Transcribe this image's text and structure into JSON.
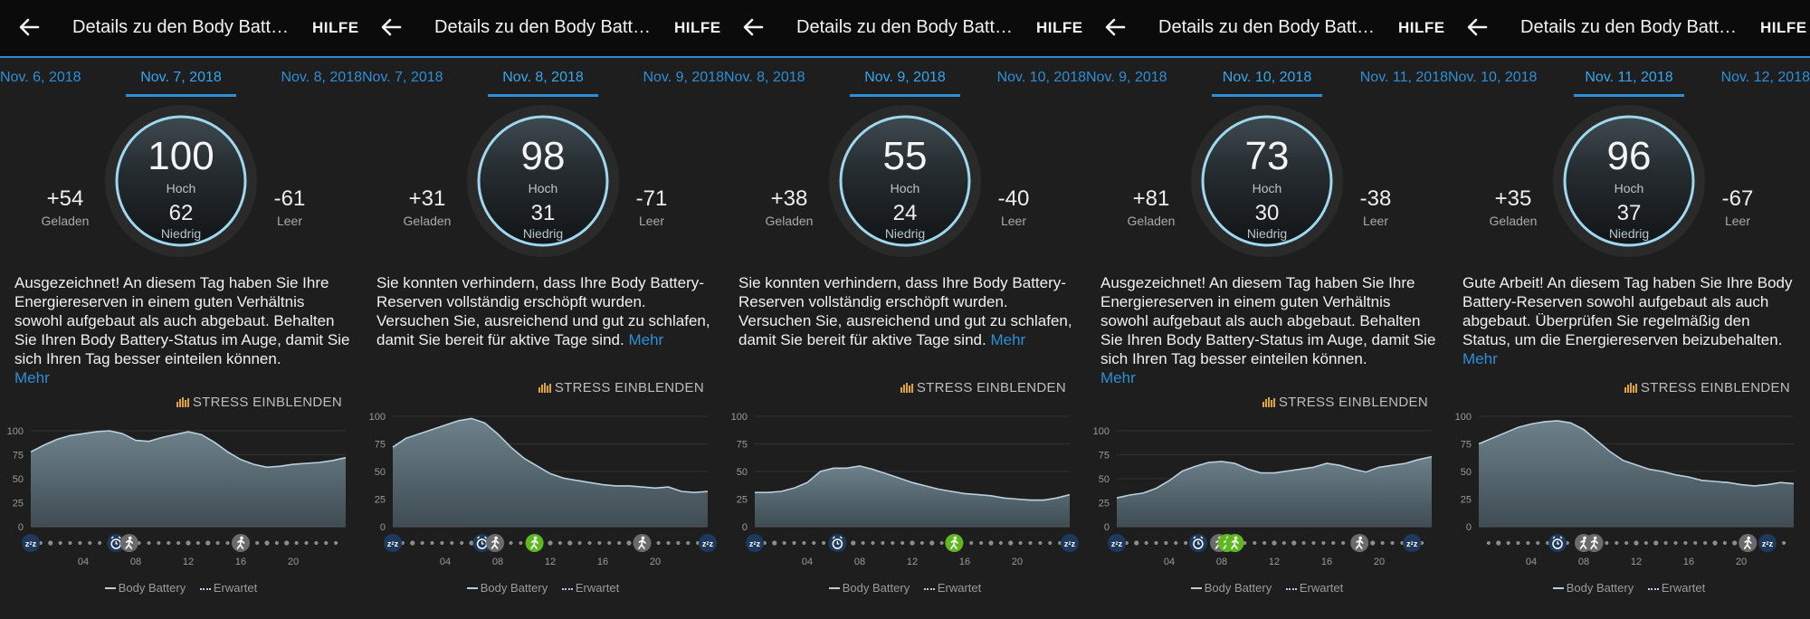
{
  "header": {
    "title": "Details zu den Body Battery-Daten",
    "help_label": "HILFE"
  },
  "labels": {
    "hoch": "Hoch",
    "niedrig": "Niedrig",
    "geladen": "Geladen",
    "leer": "Leer",
    "more": "Mehr",
    "stress": "STRESS EINBLENDEN",
    "legend_body_battery": "Body Battery",
    "legend_expected": "Erwartet",
    "y_ticks": [
      "100",
      "75",
      "50",
      "25",
      "0"
    ],
    "x_ticks": [
      "04",
      "08",
      "12",
      "16",
      "20"
    ]
  },
  "colors": {
    "accent": "#2e8fd6",
    "background": "#1e1e1e",
    "ring": "#9ed8ee",
    "area": "#5a6e78",
    "line": "#b8d0dc",
    "activity": "#5fb822",
    "stress": "#e0a62b"
  },
  "panels": [
    {
      "date_prev": "Nov. 6, 2018",
      "date_current": "Nov. 7, 2018",
      "date_next": "Nov. 8, 2018",
      "high": "100",
      "low": "62",
      "charged": "+54",
      "drained": "-61",
      "message": "Ausgezeichnet! An diesem Tag haben Sie Ihre Energiereserven in einem guten Verhältnis sowohl aufgebaut als auch abgebaut. Behalten Sie Ihren Body Battery-Status im Auge, damit Sie sich Ihren Tag besser einteilen können.",
      "more_on_new_line": true,
      "chart_data": {
        "type": "area",
        "ylim": [
          0,
          100
        ],
        "x_range_hours": [
          0,
          24
        ],
        "series": [
          {
            "name": "Body Battery",
            "x": [
              0,
              1,
              2,
              3,
              4,
              5,
              6,
              7,
              8,
              9,
              10,
              11,
              12,
              13,
              14,
              15,
              16,
              17,
              18,
              19,
              20,
              21,
              22,
              23,
              24
            ],
            "values": [
              78,
              85,
              91,
              95,
              97,
              99,
              100,
              97,
              90,
              89,
              93,
              96,
              99,
              96,
              88,
              78,
              70,
              65,
              62,
              63,
              65,
              66,
              67,
              69,
              72
            ]
          }
        ],
        "timeline_events": [
          {
            "type": "sleep",
            "hour": 0
          },
          {
            "type": "alarm",
            "hour": 6.5
          },
          {
            "type": "walk-gray",
            "hour": 7.5
          },
          {
            "type": "walk-gray",
            "hour": 16
          }
        ]
      }
    },
    {
      "date_prev": "Nov. 7, 2018",
      "date_current": "Nov. 8, 2018",
      "date_next": "Nov. 9, 2018",
      "high": "98",
      "low": "31",
      "charged": "+31",
      "drained": "-71",
      "message": "Sie konnten verhindern, dass Ihre Body Battery-Reserven vollständig erschöpft wurden. Versuchen Sie, ausreichend und gut zu schlafen, damit Sie bereit für aktive Tage sind.",
      "more_on_new_line": false,
      "chart_data": {
        "type": "area",
        "ylim": [
          0,
          100
        ],
        "x_range_hours": [
          0,
          24
        ],
        "series": [
          {
            "name": "Body Battery",
            "x": [
              0,
              1,
              2,
              3,
              4,
              5,
              6,
              7,
              8,
              9,
              10,
              11,
              12,
              13,
              14,
              15,
              16,
              17,
              18,
              19,
              20,
              21,
              22,
              23,
              24
            ],
            "values": [
              72,
              80,
              84,
              88,
              92,
              96,
              98,
              94,
              84,
              72,
              62,
              55,
              48,
              44,
              42,
              40,
              38,
              37,
              37,
              36,
              35,
              36,
              32,
              31,
              32
            ]
          }
        ],
        "timeline_events": [
          {
            "type": "sleep",
            "hour": 0
          },
          {
            "type": "alarm",
            "hour": 6.8
          },
          {
            "type": "walk-gray",
            "hour": 7.8
          },
          {
            "type": "walk-green",
            "hour": 10.8
          },
          {
            "type": "walk-gray",
            "hour": 19
          },
          {
            "type": "sleep",
            "hour": 24
          }
        ]
      }
    },
    {
      "date_prev": "Nov. 8, 2018",
      "date_current": "Nov. 9, 2018",
      "date_next": "Nov. 10, 2018",
      "high": "55",
      "low": "24",
      "charged": "+38",
      "drained": "-40",
      "message": "Sie konnten verhindern, dass Ihre Body Battery-Reserven vollständig erschöpft wurden. Versuchen Sie, ausreichend und gut zu schlafen, damit Sie bereit für aktive Tage sind.",
      "more_on_new_line": false,
      "chart_data": {
        "type": "area",
        "ylim": [
          0,
          100
        ],
        "x_range_hours": [
          0,
          24
        ],
        "series": [
          {
            "name": "Body Battery",
            "x": [
              0,
              1,
              2,
              3,
              4,
              5,
              6,
              7,
              8,
              9,
              10,
              11,
              12,
              13,
              14,
              15,
              16,
              17,
              18,
              19,
              20,
              21,
              22,
              23,
              24
            ],
            "values": [
              31,
              31,
              32,
              35,
              40,
              50,
              53,
              53,
              55,
              52,
              48,
              44,
              40,
              37,
              34,
              32,
              30,
              29,
              28,
              26,
              25,
              24,
              24,
              26,
              29
            ]
          }
        ],
        "timeline_events": [
          {
            "type": "sleep",
            "hour": 0
          },
          {
            "type": "alarm",
            "hour": 6.3
          },
          {
            "type": "walk-green",
            "hour": 15.2
          },
          {
            "type": "sleep",
            "hour": 24
          }
        ]
      }
    },
    {
      "date_prev": "Nov. 9, 2018",
      "date_current": "Nov. 10, 2018",
      "date_next": "Nov. 11, 2018",
      "high": "73",
      "low": "30",
      "charged": "+81",
      "drained": "-38",
      "message": "Ausgezeichnet! An diesem Tag haben Sie Ihre Energiereserven in einem guten Verhältnis sowohl aufgebaut als auch abgebaut. Behalten Sie Ihren Body Battery-Status im Auge, damit Sie sich Ihren Tag besser einteilen können.",
      "more_on_new_line": true,
      "chart_data": {
        "type": "area",
        "ylim": [
          0,
          100
        ],
        "x_range_hours": [
          0,
          24
        ],
        "series": [
          {
            "name": "Body Battery",
            "x": [
              0,
              1,
              2,
              3,
              4,
              5,
              6,
              7,
              8,
              9,
              10,
              11,
              12,
              13,
              14,
              15,
              16,
              17,
              18,
              19,
              20,
              21,
              22,
              23,
              24
            ],
            "values": [
              30,
              33,
              35,
              40,
              48,
              58,
              63,
              67,
              68,
              66,
              60,
              56,
              56,
              58,
              60,
              62,
              66,
              64,
              60,
              57,
              62,
              64,
              66,
              70,
              73
            ]
          }
        ],
        "timeline_events": [
          {
            "type": "sleep",
            "hour": 0
          },
          {
            "type": "alarm",
            "hour": 6.2
          },
          {
            "type": "walk-gray",
            "hour": 7.8
          },
          {
            "type": "walk-green",
            "hour": 8.4
          },
          {
            "type": "walk-green",
            "hour": 9.0
          },
          {
            "type": "walk-gray",
            "hour": 18.5
          },
          {
            "type": "sleep",
            "hour": 22.5
          }
        ]
      }
    },
    {
      "date_prev": "Nov. 10, 2018",
      "date_current": "Nov. 11, 2018",
      "date_next": "Nov. 12, 2018",
      "high": "96",
      "low": "37",
      "charged": "+35",
      "drained": "-67",
      "message": "Gute Arbeit! An diesem Tag haben Sie Ihre Body Battery-Reserven sowohl aufgebaut als auch abgebaut. Überprüfen Sie regelmäßig den Status, um die Energiereserven beizubehalten.",
      "more_on_new_line": false,
      "chart_data": {
        "type": "area",
        "ylim": [
          0,
          100
        ],
        "x_range_hours": [
          0,
          24
        ],
        "series": [
          {
            "name": "Body Battery",
            "x": [
              0,
              1,
              2,
              3,
              4,
              5,
              6,
              7,
              8,
              9,
              10,
              11,
              12,
              13,
              14,
              15,
              16,
              17,
              18,
              19,
              20,
              21,
              22,
              23,
              24
            ],
            "values": [
              75,
              80,
              85,
              90,
              93,
              95,
              96,
              94,
              88,
              78,
              68,
              60,
              56,
              52,
              50,
              47,
              45,
              42,
              41,
              40,
              38,
              37,
              38,
              40,
              39
            ]
          }
        ],
        "timeline_events": [
          {
            "type": "alarm",
            "hour": 6
          },
          {
            "type": "walk-gray",
            "hour": 8
          },
          {
            "type": "walk-gray",
            "hour": 8.8
          },
          {
            "type": "walk-gray",
            "hour": 20.5
          },
          {
            "type": "sleep",
            "hour": 22
          }
        ]
      }
    }
  ]
}
